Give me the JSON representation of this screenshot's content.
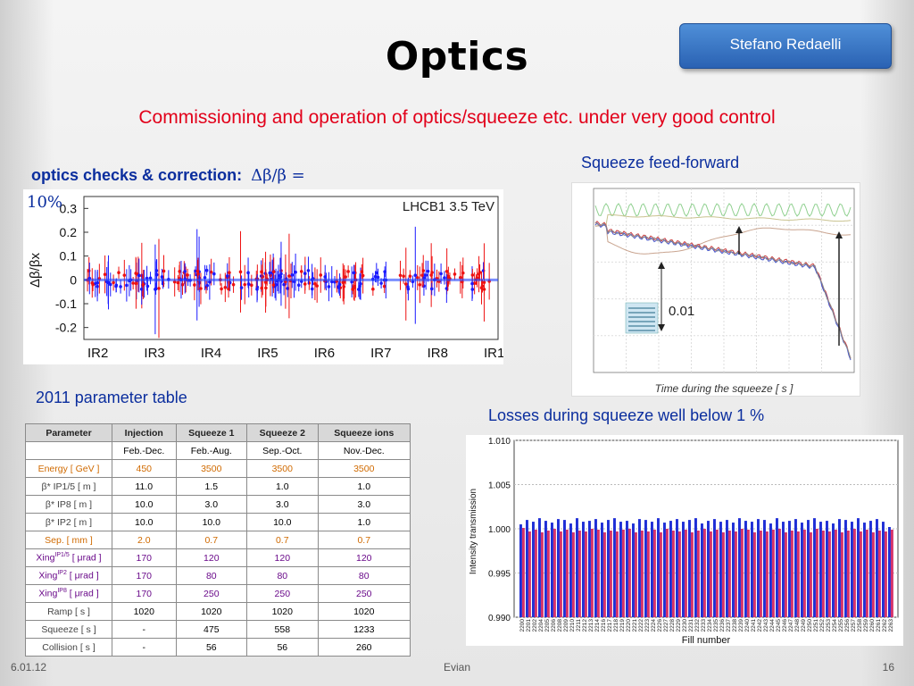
{
  "slide": {
    "title": "Optics",
    "author": "Stefano Redaelli",
    "subtitle": "Commissioning and operation of optics/squeeze etc. under very good control",
    "optics_heading_bold": "optics checks & correction:",
    "optics_heading_formula": "Δβ/β =",
    "optics_heading_tail": "10%",
    "caption_squeeze": "Squeeze feed-forward",
    "caption_table": "2011 parameter table",
    "caption_losses": "Losses during squeeze well below 1 %"
  },
  "footer": {
    "date": "6.01.12",
    "event": "Evian",
    "page": "16"
  },
  "colors": {
    "title_red": "#e2001a",
    "caption_blue": "#0b2e9e",
    "author_box": "#3a78c8"
  },
  "param_table": {
    "headers": [
      "Parameter",
      "Injection",
      "Squeeze 1",
      "Squeeze 2",
      "Squeeze ions"
    ],
    "rows": [
      {
        "style": "normal",
        "label": "",
        "sup": "",
        "unit": "",
        "cells": [
          "Feb.-Dec.",
          "Feb.-Aug.",
          "Sep.-Oct.",
          "Nov.-Dec."
        ]
      },
      {
        "style": "orange",
        "label": "Energy [ GeV ]",
        "sup": "",
        "unit": "",
        "cells": [
          "450",
          "3500",
          "3500",
          "3500"
        ]
      },
      {
        "style": "normal",
        "label": "β* IP1/5 [ m ]",
        "sup": "",
        "unit": "",
        "cells": [
          "11.0",
          "1.5",
          "1.0",
          "1.0"
        ]
      },
      {
        "style": "normal",
        "label": "β* IP8 [ m ]",
        "sup": "",
        "unit": "",
        "cells": [
          "10.0",
          "3.0",
          "3.0",
          "3.0"
        ]
      },
      {
        "style": "normal",
        "label": "β* IP2 [ m ]",
        "sup": "",
        "unit": "",
        "cells": [
          "10.0",
          "10.0",
          "10.0",
          "1.0"
        ]
      },
      {
        "style": "orange",
        "label": "Sep. [ mm ]",
        "sup": "",
        "unit": "",
        "cells": [
          "2.0",
          "0.7",
          "0.7",
          "0.7"
        ]
      },
      {
        "style": "purple",
        "label": "Xing",
        "sup": "IP1/5",
        "unit": " [ μrad ]",
        "cells": [
          "170",
          "120",
          "120",
          "120"
        ]
      },
      {
        "style": "purple",
        "label": "Xing",
        "sup": "IP2",
        "unit": " [ μrad ]",
        "cells": [
          "170",
          "80",
          "80",
          "80"
        ]
      },
      {
        "style": "purple",
        "label": "Xing",
        "sup": "IP8",
        "unit": " [ μrad ]",
        "cells": [
          "170",
          "250",
          "250",
          "250"
        ]
      },
      {
        "style": "normal",
        "label": "Ramp [ s ]",
        "sup": "",
        "unit": "",
        "cells": [
          "1020",
          "1020",
          "1020",
          "1020"
        ]
      },
      {
        "style": "normal",
        "label": "Squeeze [ s ]",
        "sup": "",
        "unit": "",
        "cells": [
          "-",
          "475",
          "558",
          "1233"
        ]
      },
      {
        "style": "normal",
        "label": "Collision [ s ]",
        "sup": "",
        "unit": "",
        "cells": [
          "-",
          "56",
          "56",
          "260"
        ]
      }
    ]
  },
  "chart_data": [
    {
      "type": "scatter",
      "title": "LHCB1 3.5 TeV",
      "ylabel": "Δβ/βx",
      "ylim": [
        -0.25,
        0.35
      ],
      "y_ticks": [
        0.3,
        0.2,
        0.1,
        0,
        -0.1,
        -0.2
      ],
      "y_tick_labels": [
        "0.3",
        "0.2",
        "0.1",
        "0",
        "-0.1",
        "-0.2"
      ],
      "x_categories": [
        "IR2",
        "IR3",
        "IR4",
        "IR5",
        "IR6",
        "IR7",
        "IR8",
        "IR1"
      ],
      "series_colors": [
        "#1a1aff",
        "#ee1111"
      ],
      "grid": false
    },
    {
      "type": "line",
      "xlabel": "Time during the squeeze [ s ]",
      "annotation": "0.01",
      "legend_placement": "bottom-left",
      "grid": true
    },
    {
      "type": "bar",
      "xlabel": "Fill number",
      "ylabel": "Intensity transmission",
      "ylim": [
        0.99,
        1.01
      ],
      "y_ticks": [
        1.01,
        1.005,
        1.0,
        0.995,
        0.99
      ],
      "y_tick_labels": [
        "1.010",
        "1.005",
        "1.000",
        "0.995",
        "0.990"
      ],
      "categories": [
        "2200",
        "2201",
        "2202",
        "2204",
        "2205",
        "2206",
        "2208",
        "2209",
        "2210",
        "2211",
        "2212",
        "2213",
        "2214",
        "2216",
        "2217",
        "2218",
        "2219",
        "2220",
        "2221",
        "2222",
        "2223",
        "2224",
        "2226",
        "2227",
        "2228",
        "2229",
        "2230",
        "2231",
        "2232",
        "2233",
        "2234",
        "2235",
        "2236",
        "2237",
        "2238",
        "2239",
        "2240",
        "2241",
        "2242",
        "2243",
        "2244",
        "2245",
        "2246",
        "2247",
        "2248",
        "2249",
        "2250",
        "2251",
        "2252",
        "2253",
        "2254",
        "2255",
        "2256",
        "2257",
        "2258",
        "2259",
        "2260",
        "2261",
        "2262",
        "2263"
      ],
      "series": [
        {
          "color": "#1f2fd6",
          "values": [
            1.0005,
            1.001,
            1.0008,
            1.0012,
            1.0009,
            1.0007,
            1.0011,
            1.001,
            1.0006,
            1.0012,
            1.0008,
            1.0009,
            1.0011,
            1.0007,
            1.001,
            1.0012,
            1.0008,
            1.0009,
            1.0006,
            1.0011,
            1.001,
            1.0008,
            1.0012,
            1.0007,
            1.0009,
            1.0011,
            1.0008,
            1.001,
            1.0012,
            1.0006,
            1.0009,
            1.0011,
            1.0008,
            1.001,
            1.0007,
            1.0012,
            1.0009,
            1.0008,
            1.0011,
            1.001,
            1.0006,
            1.0012,
            1.0008,
            1.0009,
            1.0011,
            1.0007,
            1.001,
            1.0012,
            1.0008,
            1.0009,
            1.0006,
            1.0011,
            1.001,
            1.0008,
            1.0012,
            1.0007,
            1.0009,
            1.0011,
            1.0008,
            1.0002
          ]
        },
        {
          "color": "#d6336a",
          "values": [
            1.0001,
            0.9997,
            0.9999,
            0.9996,
            0.9998,
            1.0,
            0.9997,
            0.9999,
            0.9996,
            0.9998,
            0.9997,
            1.0,
            0.9999,
            0.9996,
            0.9998,
            0.9997,
            0.9999,
            1.0,
            0.9996,
            0.9998,
            0.9997,
            0.9999,
            0.9996,
            1.0,
            0.9998,
            0.9997,
            0.9999,
            0.9996,
            0.9998,
            1.0,
            0.9997,
            0.9999,
            0.9996,
            0.9998,
            0.9997,
            1.0,
            0.9999,
            0.9996,
            0.9998,
            0.9997,
            0.9999,
            1.0,
            0.9996,
            0.9998,
            0.9997,
            0.9999,
            0.9996,
            1.0,
            0.9998,
            0.9997,
            0.9999,
            0.9996,
            0.9998,
            1.0,
            0.9997,
            0.9999,
            0.9996,
            0.9998,
            0.9997,
            0.9999
          ]
        }
      ],
      "grid": true
    }
  ]
}
